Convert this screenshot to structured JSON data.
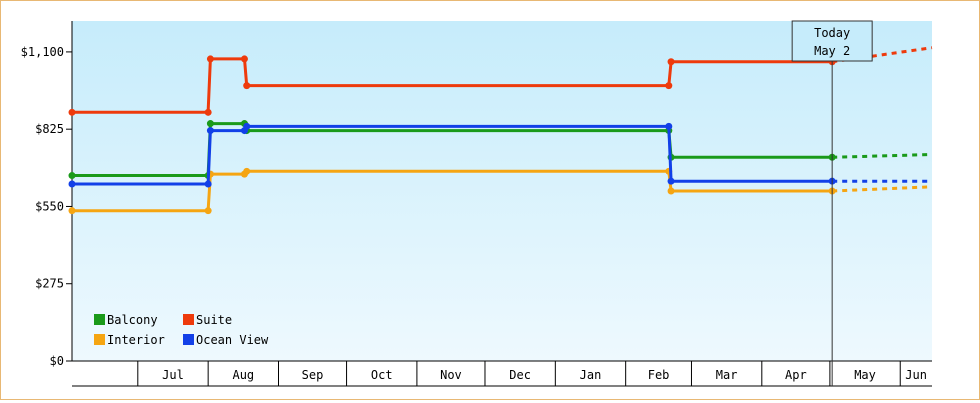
{
  "chart_data": {
    "type": "line",
    "title": "",
    "xlabel": "",
    "ylabel": "",
    "ylim": [
      0,
      1210
    ],
    "y_ticks": [
      {
        "value": 0,
        "label": "$0"
      },
      {
        "value": 275,
        "label": "$275"
      },
      {
        "value": 550,
        "label": "$550"
      },
      {
        "value": 825,
        "label": "$825"
      },
      {
        "value": 1100,
        "label": "$1,100"
      }
    ],
    "x_start": "2015-06-02",
    "x_end": "2016-06-15",
    "months": [
      {
        "label": "Jul",
        "start": "2015-07-01"
      },
      {
        "label": "Aug",
        "start": "2015-08-01"
      },
      {
        "label": "Sep",
        "start": "2015-09-01"
      },
      {
        "label": "Oct",
        "start": "2015-10-01"
      },
      {
        "label": "Nov",
        "start": "2015-11-01"
      },
      {
        "label": "Dec",
        "start": "2015-12-01"
      },
      {
        "label": "Jan",
        "start": "2016-01-01"
      },
      {
        "label": "Feb",
        "start": "2016-02-01"
      },
      {
        "label": "Mar",
        "start": "2016-03-01"
      },
      {
        "label": "Apr",
        "start": "2016-04-01"
      },
      {
        "label": "May",
        "start": "2016-05-01"
      },
      {
        "label": "Jun",
        "start": "2016-06-01"
      }
    ],
    "today": {
      "date": "2016-05-02",
      "label_line1": "Today",
      "label_line2": "May 2"
    },
    "grid": false,
    "legend_position": "bottom-left",
    "series": [
      {
        "name": "Balcony",
        "color": "#1a9a1a",
        "points": [
          {
            "x": "2015-06-02",
            "y": 660
          },
          {
            "x": "2015-08-01",
            "y": 660
          },
          {
            "x": "2015-08-02",
            "y": 845
          },
          {
            "x": "2015-08-17",
            "y": 845
          },
          {
            "x": "2015-08-18",
            "y": 820
          },
          {
            "x": "2016-02-20",
            "y": 820
          },
          {
            "x": "2016-02-21",
            "y": 725
          },
          {
            "x": "2016-05-02",
            "y": 725
          }
        ],
        "projection": [
          {
            "x": "2016-05-02",
            "y": 725
          },
          {
            "x": "2016-06-15",
            "y": 735
          }
        ]
      },
      {
        "name": "Suite",
        "color": "#ee3a0c",
        "points": [
          {
            "x": "2015-06-02",
            "y": 885
          },
          {
            "x": "2015-08-01",
            "y": 885
          },
          {
            "x": "2015-08-02",
            "y": 1075
          },
          {
            "x": "2015-08-17",
            "y": 1075
          },
          {
            "x": "2015-08-18",
            "y": 980
          },
          {
            "x": "2016-02-20",
            "y": 980
          },
          {
            "x": "2016-02-21",
            "y": 1065
          },
          {
            "x": "2016-05-02",
            "y": 1065
          }
        ],
        "projection": [
          {
            "x": "2016-05-02",
            "y": 1065
          },
          {
            "x": "2016-05-20",
            "y": 1085
          },
          {
            "x": "2016-06-15",
            "y": 1115
          }
        ]
      },
      {
        "name": "Interior",
        "color": "#f5a512",
        "points": [
          {
            "x": "2015-06-02",
            "y": 535
          },
          {
            "x": "2015-08-01",
            "y": 535
          },
          {
            "x": "2015-08-02",
            "y": 665
          },
          {
            "x": "2015-08-17",
            "y": 665
          },
          {
            "x": "2015-08-18",
            "y": 675
          },
          {
            "x": "2016-02-20",
            "y": 675
          },
          {
            "x": "2016-02-21",
            "y": 605
          },
          {
            "x": "2016-05-02",
            "y": 605
          }
        ],
        "projection": [
          {
            "x": "2016-05-02",
            "y": 605
          },
          {
            "x": "2016-06-15",
            "y": 620
          }
        ]
      },
      {
        "name": "Ocean View",
        "color": "#1240e8",
        "points": [
          {
            "x": "2015-06-02",
            "y": 630
          },
          {
            "x": "2015-08-01",
            "y": 630
          },
          {
            "x": "2015-08-02",
            "y": 820
          },
          {
            "x": "2015-08-17",
            "y": 820
          },
          {
            "x": "2015-08-18",
            "y": 835
          },
          {
            "x": "2016-02-20",
            "y": 835
          },
          {
            "x": "2016-02-21",
            "y": 640
          },
          {
            "x": "2016-05-02",
            "y": 640
          }
        ],
        "projection": [
          {
            "x": "2016-05-02",
            "y": 640
          },
          {
            "x": "2016-06-15",
            "y": 640
          }
        ]
      }
    ]
  }
}
